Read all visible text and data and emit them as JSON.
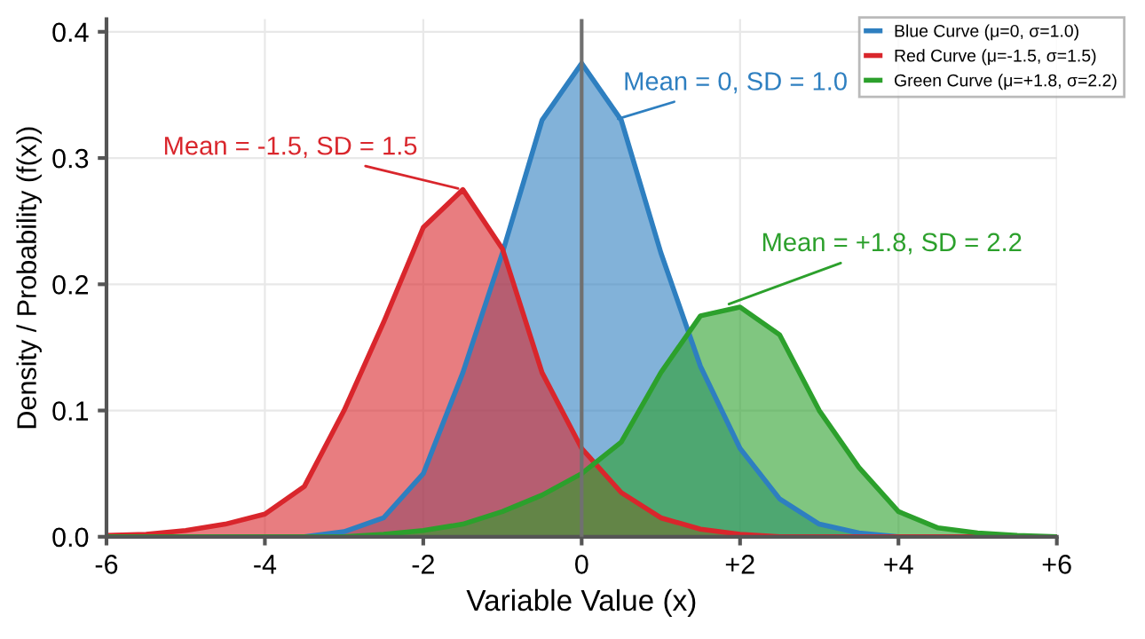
{
  "chart_data": {
    "type": "area",
    "xlabel": "Variable Value (x)",
    "ylabel": "Density / Probability (f(x))",
    "x": [
      -6,
      -5.5,
      -5,
      -4.5,
      -4,
      -3.5,
      -3,
      -2.5,
      -2,
      -1.5,
      -1,
      -0.5,
      0,
      0.5,
      1,
      1.5,
      2,
      2.5,
      3,
      3.5,
      4,
      4.5,
      5,
      5.5,
      6
    ],
    "series": [
      {
        "name": "Blue Curve (μ=0, σ=1.0)",
        "color": "#2e7fc0",
        "values": [
          0,
          0,
          0,
          0,
          0,
          0,
          0.004,
          0.015,
          0.05,
          0.13,
          0.225,
          0.33,
          0.375,
          0.33,
          0.225,
          0.135,
          0.07,
          0.03,
          0.01,
          0.003,
          0,
          0,
          0,
          0,
          0
        ]
      },
      {
        "name": "Red Curve (μ=-1.5, σ=1.5)",
        "color": "#d9262c",
        "values": [
          0.001,
          0.002,
          0.005,
          0.01,
          0.018,
          0.04,
          0.1,
          0.17,
          0.245,
          0.275,
          0.228,
          0.13,
          0.07,
          0.035,
          0.015,
          0.006,
          0.002,
          0,
          0,
          0,
          0,
          0,
          0,
          0,
          0
        ]
      },
      {
        "name": "Green Curve (μ=+1.8, σ=2.2)",
        "color": "#2ca02c",
        "values": [
          0,
          0,
          0,
          0,
          0,
          0,
          0,
          0.002,
          0.005,
          0.01,
          0.02,
          0.033,
          0.05,
          0.075,
          0.13,
          0.175,
          0.182,
          0.16,
          0.1,
          0.055,
          0.02,
          0.007,
          0.003,
          0.001,
          0
        ]
      }
    ],
    "xlim": [
      -6,
      6
    ],
    "xticks": [
      -6,
      -4,
      -2,
      {
        "value": 0,
        "label": "0"
      },
      {
        "value": 2,
        "label": "+2"
      },
      {
        "value": 4,
        "label": "+4"
      },
      {
        "value": 6,
        "label": "+6"
      }
    ],
    "ylim": [
      0,
      0.41
    ],
    "yticks": [
      {
        "value": 0,
        "label": "0.0"
      },
      0.1,
      0.2,
      0.3,
      0.4
    ],
    "ref_lines": [
      {
        "axis": "x",
        "value": 0,
        "label": null,
        "color": "#707070"
      }
    ],
    "annotations": [
      {
        "text": "Mean = 0, SD = 1.0",
        "x": 0.4,
        "y": 0.33
      },
      {
        "text": "Mean = -1.5, SD = 1.5",
        "x": -1.5,
        "y": 0.275
      },
      {
        "text": "Mean = +1.8, SD = 2.2",
        "x": 1.8,
        "y": 0.183
      }
    ],
    "grid": true,
    "legend": "top right"
  }
}
